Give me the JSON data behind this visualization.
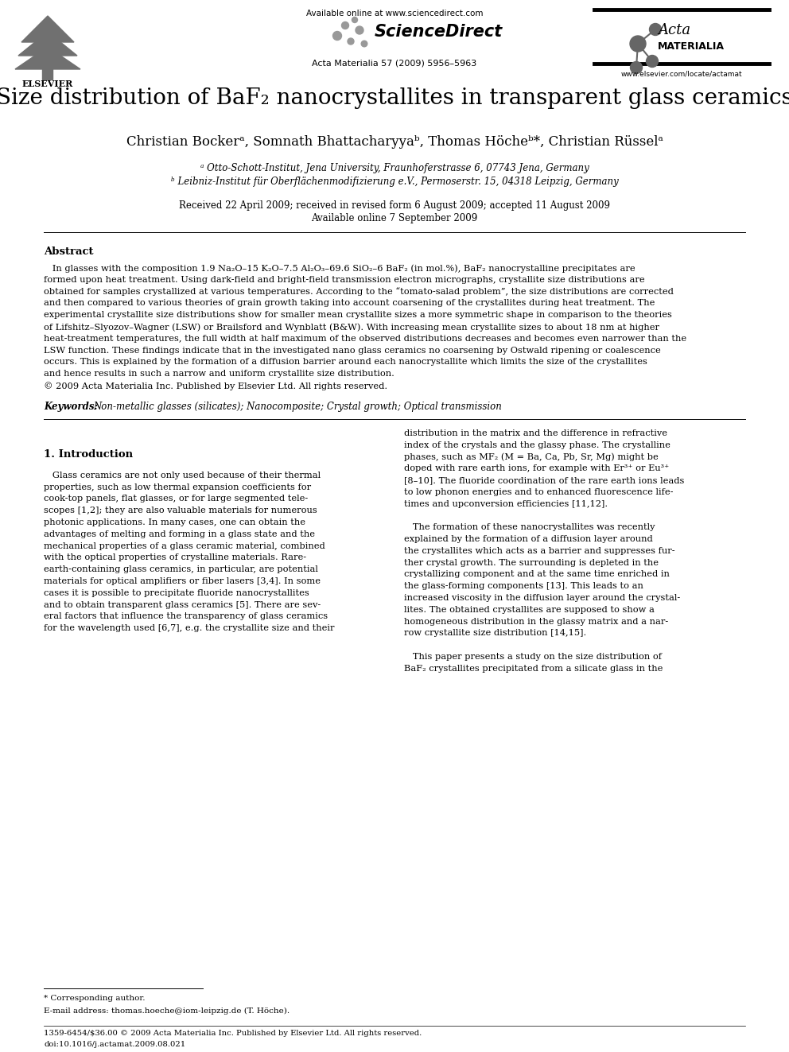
{
  "title_part1": "Size distribution of BaF",
  "title_sub": "2",
  "title_part2": " nanocrystallites in transparent glass ceramics",
  "authors": "Christian Bockerᵃ, Somnath Bhattacharyyaᵇ, Thomas Höcheᵇ*, Christian Rüsselᵃ",
  "affil_a": "ᵃ Otto-Schott-Institut, Jena University, Fraunhoferstrasse 6, 07743 Jena, Germany",
  "affil_b": "ᵇ Leibniz-Institut für Oberflächenmodifizierung e.V., Permoserstr. 15, 04318 Leipzig, Germany",
  "dates": "Received 22 April 2009; received in revised form 6 August 2009; accepted 11 August 2009",
  "available": "Available online 7 September 2009",
  "journal": "Acta Materialia 57 (2009) 5956–5963",
  "available_online": "Available online at www.sciencedirect.com",
  "website": "www.elsevier.com/locate/actamat",
  "abstract_title": "Abstract",
  "abstract_lines": [
    "   In glasses with the composition 1.9 Na₂O–15 K₂O–7.5 Al₂O₃–69.6 SiO₂–6 BaF₂ (in mol.%), BaF₂ nanocrystalline precipitates are",
    "formed upon heat treatment. Using dark-field and bright-field transmission electron micrographs, crystallite size distributions are",
    "obtained for samples crystallized at various temperatures. According to the “tomato-salad problem”, the size distributions are corrected",
    "and then compared to various theories of grain growth taking into account coarsening of the crystallites during heat treatment. The",
    "experimental crystallite size distributions show for smaller mean crystallite sizes a more symmetric shape in comparison to the theories",
    "of Lifshitz–Slyozov–Wagner (LSW) or Brailsford and Wynblatt (B&W). With increasing mean crystallite sizes to about 18 nm at higher",
    "heat-treatment temperatures, the full width at half maximum of the observed distributions decreases and becomes even narrower than the",
    "LSW function. These findings indicate that in the investigated nano glass ceramics no coarsening by Ostwald ripening or coalescence",
    "occurs. This is explained by the formation of a diffusion barrier around each nanocrystallite which limits the size of the crystallites",
    "and hence results in such a narrow and uniform crystallite size distribution.",
    "© 2009 Acta Materialia Inc. Published by Elsevier Ltd. All rights reserved."
  ],
  "keywords_label": "Keywords:",
  "keywords_text": "Non-metallic glasses (silicates); Nanocomposite; Crystal growth; Optical transmission",
  "section1_title": "1. Introduction",
  "col1_lines": [
    "   Glass ceramics are not only used because of their thermal",
    "properties, such as low thermal expansion coefficients for",
    "cook-top panels, flat glasses, or for large segmented tele-",
    "scopes [1,2]; they are also valuable materials for numerous",
    "photonic applications. In many cases, one can obtain the",
    "advantages of melting and forming in a glass state and the",
    "mechanical properties of a glass ceramic material, combined",
    "with the optical properties of crystalline materials. Rare-",
    "earth-containing glass ceramics, in particular, are potential",
    "materials for optical amplifiers or fiber lasers [3,4]. In some",
    "cases it is possible to precipitate fluoride nanocrystallites",
    "and to obtain transparent glass ceramics [5]. There are sev-",
    "eral factors that influence the transparency of glass ceramics",
    "for the wavelength used [6,7], e.g. the crystallite size and their"
  ],
  "col2_lines": [
    "distribution in the matrix and the difference in refractive",
    "index of the crystals and the glassy phase. The crystalline",
    "phases, such as MF₂ (M = Ba, Ca, Pb, Sr, Mg) might be",
    "doped with rare earth ions, for example with Er³⁺ or Eu³⁺",
    "[8–10]. The fluoride coordination of the rare earth ions leads",
    "to low phonon energies and to enhanced fluorescence life-",
    "times and upconversion efficiencies [11,12].",
    "",
    "   The formation of these nanocrystallites was recently",
    "explained by the formation of a diffusion layer around",
    "the crystallites which acts as a barrier and suppresses fur-",
    "ther crystal growth. The surrounding is depleted in the",
    "crystallizing component and at the same time enriched in",
    "the glass-forming components [13]. This leads to an",
    "increased viscosity in the diffusion layer around the crystal-",
    "lites. The obtained crystallites are supposed to show a",
    "homogeneous distribution in the glassy matrix and a nar-",
    "row crystallite size distribution [14,15].",
    "",
    "   This paper presents a study on the size distribution of",
    "BaF₂ crystallites precipitated from a silicate glass in the"
  ],
  "footnote_star": "* Corresponding author.",
  "footnote_email": "E-mail address: thomas.hoeche@iom-leipzig.de (T. Höche).",
  "footer_line1": "1359-6454/$36.00 © 2009 Acta Materialia Inc. Published by Elsevier Ltd. All rights reserved.",
  "footer_line2": "doi:10.1016/j.actamat.2009.08.021",
  "background_color": "#ffffff",
  "text_color": "#000000",
  "page_width": 9.92,
  "page_height": 13.23
}
